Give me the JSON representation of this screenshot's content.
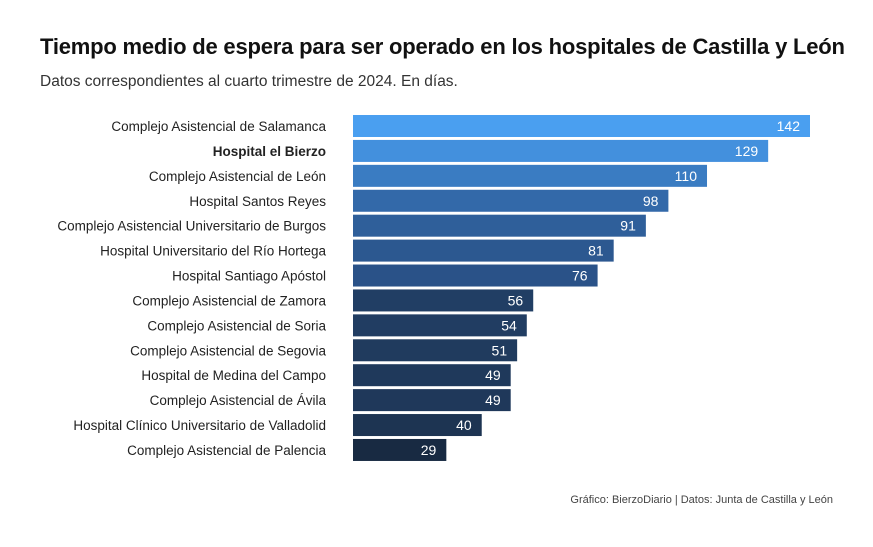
{
  "header": {
    "title": "Tiempo medio de espera para ser operado en los hospitales de Castilla y León",
    "subtitle": "Datos correspondientes al cuarto trimestre de 2024. En días."
  },
  "footer": {
    "credit": "Gráfico: BierzoDiario",
    "separator": "|",
    "source": "Datos: Junta de Castilla y León"
  },
  "chart_data": {
    "type": "bar",
    "orientation": "horizontal",
    "categories": [
      "Complejo Asistencial de Salamanca",
      "Hospital el Bierzo",
      "Complejo Asistencial de León",
      "Hospital Santos Reyes",
      "Complejo Asistencial Universitario de Burgos",
      "Hospital Universitario del Río Hortega",
      "Hospital Santiago Apóstol",
      "Complejo Asistencial de Zamora",
      "Complejo Asistencial de Soria",
      "Complejo Asistencial de Segovia",
      "Hospital de Medina del Campo",
      "Complejo Asistencial de Ávila",
      "Hospital Clínico Universitario de Valladolid",
      "Complejo Asistencial de Palencia"
    ],
    "values": [
      142,
      129,
      110,
      98,
      91,
      81,
      76,
      56,
      54,
      51,
      49,
      49,
      40,
      29
    ],
    "highlight": "Hospital el Bierzo",
    "colors": [
      "#4a9ff0",
      "#4390dd",
      "#3a7cc2",
      "#3369a9",
      "#2f5f9a",
      "#2c5890",
      "#2a5288",
      "#213e64",
      "#213d62",
      "#203b5e",
      "#1f395b",
      "#1f385a",
      "#1d3452",
      "#182a42"
    ],
    "label_color": "#ffffff",
    "xlim": [
      0,
      142
    ],
    "grid": false,
    "legend": "none"
  }
}
